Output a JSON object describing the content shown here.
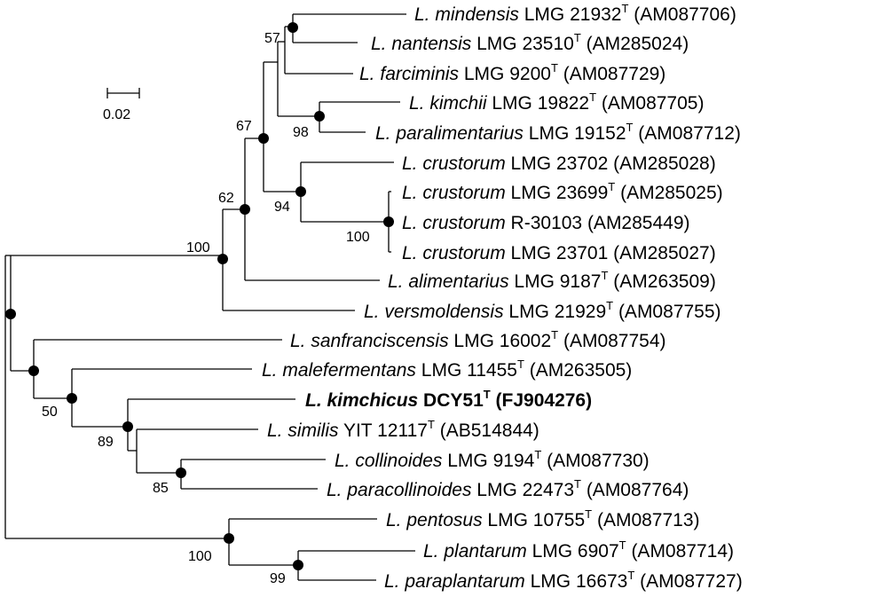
{
  "scale_bar": {
    "label": "0.02"
  },
  "node_marker_color": "#000000",
  "taxa": [
    {
      "genus": "L. ",
      "species": "mindensis",
      "strain": " LMG 21932",
      "type_strain": true,
      "accession": " (AM087706)",
      "highlight": false
    },
    {
      "genus": "L. ",
      "species": "nantensis",
      "strain": " LMG 23510",
      "type_strain": true,
      "accession": " (AM285024)",
      "highlight": false
    },
    {
      "genus": "L. ",
      "species": "farciminis",
      "strain": " LMG 9200",
      "type_strain": true,
      "accession": " (AM087729)",
      "highlight": false
    },
    {
      "genus": "L. ",
      "species": "kimchii",
      "strain": " LMG 19822",
      "type_strain": true,
      "accession": " (AM087705)",
      "highlight": false
    },
    {
      "genus": "L. ",
      "species": "paralimentarius",
      "strain": " LMG 19152",
      "type_strain": true,
      "accession": " (AM087712)",
      "highlight": false
    },
    {
      "genus": "L. ",
      "species": "crustorum",
      "strain": " LMG 23702",
      "type_strain": false,
      "accession": " (AM285028)",
      "highlight": false
    },
    {
      "genus": "L. ",
      "species": "crustorum",
      "strain": " LMG 23699",
      "type_strain": true,
      "accession": " (AM285025)",
      "highlight": false
    },
    {
      "genus": "L. ",
      "species": "crustorum",
      "strain": " R-30103",
      "type_strain": false,
      "accession": " (AM285449)",
      "highlight": false
    },
    {
      "genus": "L. ",
      "species": "crustorum",
      "strain": " LMG 23701",
      "type_strain": false,
      "accession": " (AM285027)",
      "highlight": false
    },
    {
      "genus": "L. ",
      "species": "alimentarius",
      "strain": " LMG 9187",
      "type_strain": true,
      "accession": " (AM263509)",
      "highlight": false
    },
    {
      "genus": "L. ",
      "species": "versmoldensis",
      "strain": " LMG 21929",
      "type_strain": true,
      "accession": " (AM087755)",
      "highlight": false
    },
    {
      "genus": "L. ",
      "species": "sanfranciscensis",
      "strain": " LMG 16002",
      "type_strain": true,
      "accession": " (AM087754)",
      "highlight": false
    },
    {
      "genus": "L. ",
      "species": "malefermentans",
      "strain": " LMG 11455",
      "type_strain": true,
      "accession": " (AM263505)",
      "highlight": false
    },
    {
      "genus": "L. ",
      "species": "kimchicus",
      "strain": " DCY51",
      "type_strain": true,
      "accession": " (FJ904276)",
      "highlight": true
    },
    {
      "genus": "L. ",
      "species": "similis",
      "strain": " YIT 12117",
      "type_strain": true,
      "accession": " (AB514844)",
      "highlight": false
    },
    {
      "genus": "L. ",
      "species": "collinoides",
      "strain": " LMG 9194",
      "type_strain": true,
      "accession": " (AM087730)",
      "highlight": false
    },
    {
      "genus": "L. ",
      "species": "paracollinoides",
      "strain": " LMG 22473",
      "type_strain": true,
      "accession": " (AM087764)",
      "highlight": false
    },
    {
      "genus": "L. ",
      "species": "pentosus",
      "strain": " LMG 10755",
      "type_strain": true,
      "accession": " (AM087713)",
      "highlight": false
    },
    {
      "genus": "L. ",
      "species": "plantarum",
      "strain": " LMG 6907",
      "type_strain": true,
      "accession": " (AM087714)",
      "highlight": false
    },
    {
      "genus": "L. ",
      "species": "paraplantarum",
      "strain": " LMG 16673",
      "type_strain": true,
      "accession": " (AM087727)",
      "highlight": false
    }
  ],
  "type_marker": "T",
  "bootstrap_values": {
    "n57": "57",
    "n98": "98",
    "n67": "67",
    "n94": "94",
    "n100crust": "100",
    "n62": "62",
    "n100top": "100",
    "n50": "50",
    "n89": "89",
    "n85": "85",
    "n100plant": "100",
    "n99": "99"
  }
}
